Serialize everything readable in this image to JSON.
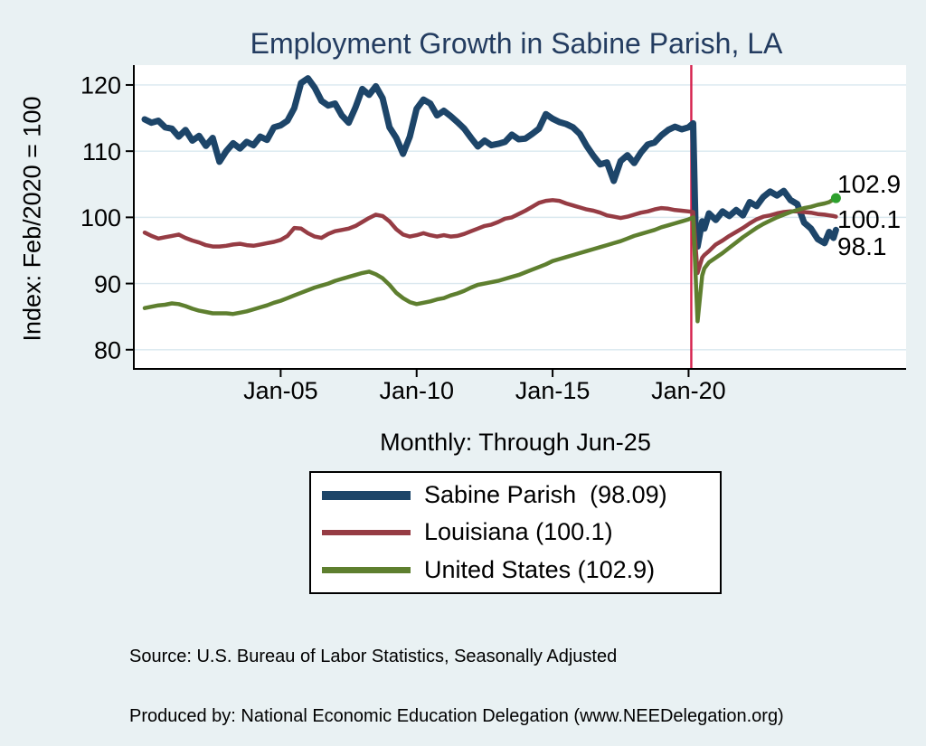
{
  "colors": {
    "background": "#e9f1f3",
    "plot_bg": "#ffffff",
    "grid": "#dae8ef",
    "axis": "#000000",
    "text": "#000000",
    "title": "#233c60",
    "sabine": "#1d4569",
    "louisiana": "#963c44",
    "united_states": "#5e7f2f",
    "event_line": "#d5214c",
    "end_dot": "#2da02d"
  },
  "chart_data": {
    "type": "line",
    "title": "Employment Growth in Sabine Parish, LA",
    "subtitle": "Monthly: Through Jun-25",
    "ylabel": "Index: Feb/2020 = 100",
    "xlabel": "",
    "grid": "horizontal",
    "legend_position": "bottom",
    "ylim": [
      77.1,
      123.0
    ],
    "xlim": [
      1999.6,
      2028.0
    ],
    "yticks": [
      80,
      90,
      100,
      110,
      120
    ],
    "xticks": [
      {
        "x": 2005,
        "label": "Jan-05"
      },
      {
        "x": 2010,
        "label": "Jan-10"
      },
      {
        "x": 2015,
        "label": "Jan-15"
      },
      {
        "x": 2020,
        "label": "Jan-20"
      }
    ],
    "event_line_x": 2020.1,
    "x": [
      2000.0,
      2000.25,
      2000.5,
      2000.75,
      2001.0,
      2001.25,
      2001.5,
      2001.75,
      2002.0,
      2002.25,
      2002.5,
      2002.75,
      2003.0,
      2003.25,
      2003.5,
      2003.75,
      2004.0,
      2004.25,
      2004.5,
      2004.75,
      2005.0,
      2005.25,
      2005.5,
      2005.75,
      2006.0,
      2006.25,
      2006.5,
      2006.75,
      2007.0,
      2007.25,
      2007.5,
      2007.75,
      2008.0,
      2008.25,
      2008.5,
      2008.75,
      2009.0,
      2009.25,
      2009.5,
      2009.75,
      2010.0,
      2010.25,
      2010.5,
      2010.75,
      2011.0,
      2011.25,
      2011.5,
      2011.75,
      2012.0,
      2012.25,
      2012.5,
      2012.75,
      2013.0,
      2013.25,
      2013.5,
      2013.75,
      2014.0,
      2014.25,
      2014.5,
      2014.75,
      2015.0,
      2015.25,
      2015.5,
      2015.75,
      2016.0,
      2016.25,
      2016.5,
      2016.75,
      2017.0,
      2017.25,
      2017.5,
      2017.75,
      2018.0,
      2018.25,
      2018.5,
      2018.75,
      2019.0,
      2019.25,
      2019.5,
      2019.75,
      2020.0,
      2020.17,
      2020.25,
      2020.33,
      2020.5,
      2020.58,
      2020.75,
      2021.0,
      2021.25,
      2021.5,
      2021.75,
      2022.0,
      2022.25,
      2022.5,
      2022.75,
      2023.0,
      2023.25,
      2023.5,
      2023.75,
      2024.0,
      2024.25,
      2024.5,
      2024.75,
      2025.0,
      2025.17,
      2025.33,
      2025.42
    ],
    "series": [
      {
        "name": "Sabine Parish",
        "legend_label": "Sabine Parish  (98.09)",
        "end_label": "98.1",
        "color_key": "sabine",
        "line_width": 7,
        "end_marker": false,
        "values": [
          114.8,
          114.3,
          114.6,
          113.6,
          113.4,
          112.2,
          113.2,
          111.6,
          112.3,
          110.8,
          112.0,
          108.4,
          110.0,
          111.2,
          110.4,
          111.4,
          110.9,
          112.2,
          111.7,
          113.6,
          113.9,
          114.6,
          116.5,
          120.3,
          121.0,
          119.6,
          117.6,
          116.9,
          117.2,
          115.4,
          114.3,
          116.6,
          119.4,
          118.5,
          119.8,
          118.0,
          113.6,
          112.0,
          109.6,
          112.2,
          116.4,
          117.8,
          117.2,
          115.4,
          116.1,
          115.3,
          114.4,
          113.4,
          112.0,
          110.7,
          111.6,
          110.9,
          111.1,
          111.4,
          112.5,
          111.8,
          111.9,
          112.6,
          113.4,
          115.6,
          114.9,
          114.4,
          114.1,
          113.6,
          112.6,
          110.8,
          109.3,
          108.0,
          108.3,
          105.5,
          108.5,
          109.4,
          108.2,
          109.8,
          111.0,
          111.3,
          112.4,
          113.2,
          113.7,
          113.3,
          113.6,
          114.2,
          99.2,
          95.6,
          99.4,
          98.3,
          100.6,
          99.6,
          100.9,
          100.2,
          101.1,
          100.3,
          102.3,
          101.7,
          103.1,
          103.9,
          103.3,
          104.0,
          102.6,
          102.0,
          99.2,
          98.3,
          96.7,
          96.1,
          97.8,
          96.9,
          98.1
        ]
      },
      {
        "name": "Louisiana",
        "legend_label": "Louisiana (100.1)",
        "end_label": "100.1",
        "color_key": "louisiana",
        "line_width": 4.5,
        "end_marker": false,
        "values": [
          97.7,
          97.2,
          96.8,
          97.0,
          97.2,
          97.4,
          96.9,
          96.5,
          96.2,
          95.8,
          95.6,
          95.6,
          95.7,
          95.9,
          96.0,
          95.8,
          95.7,
          95.9,
          96.1,
          96.3,
          96.6,
          97.2,
          98.4,
          98.3,
          97.6,
          97.1,
          96.9,
          97.5,
          97.9,
          98.1,
          98.3,
          98.7,
          99.3,
          99.9,
          100.4,
          100.2,
          99.4,
          98.2,
          97.4,
          97.1,
          97.3,
          97.6,
          97.3,
          97.1,
          97.3,
          97.1,
          97.2,
          97.5,
          97.9,
          98.3,
          98.7,
          98.9,
          99.3,
          99.8,
          100.0,
          100.5,
          101.0,
          101.6,
          102.2,
          102.5,
          102.6,
          102.5,
          102.1,
          101.8,
          101.5,
          101.2,
          101.0,
          100.7,
          100.3,
          100.1,
          99.9,
          100.1,
          100.4,
          100.7,
          100.9,
          101.2,
          101.4,
          101.3,
          101.1,
          101.0,
          100.9,
          100.8,
          96.0,
          91.6,
          93.9,
          94.3,
          94.9,
          95.9,
          96.5,
          97.2,
          97.8,
          98.4,
          99.1,
          99.7,
          100.1,
          100.3,
          100.6,
          100.8,
          100.9,
          100.9,
          100.8,
          100.7,
          100.5,
          100.4,
          100.3,
          100.2,
          100.1
        ]
      },
      {
        "name": "United States",
        "legend_label": "United States (102.9)",
        "end_label": "102.9",
        "color_key": "united_states",
        "line_width": 4.5,
        "end_marker": true,
        "values": [
          86.3,
          86.5,
          86.7,
          86.8,
          87.0,
          86.9,
          86.6,
          86.2,
          85.9,
          85.7,
          85.5,
          85.5,
          85.5,
          85.4,
          85.6,
          85.8,
          86.1,
          86.4,
          86.7,
          87.1,
          87.4,
          87.8,
          88.2,
          88.6,
          89.0,
          89.4,
          89.7,
          90.0,
          90.4,
          90.7,
          91.0,
          91.3,
          91.6,
          91.8,
          91.4,
          90.8,
          89.8,
          88.6,
          87.8,
          87.2,
          86.9,
          87.1,
          87.3,
          87.6,
          87.8,
          88.2,
          88.5,
          88.9,
          89.4,
          89.8,
          90.0,
          90.2,
          90.4,
          90.7,
          91.0,
          91.3,
          91.7,
          92.1,
          92.5,
          92.9,
          93.4,
          93.7,
          94.0,
          94.3,
          94.6,
          94.9,
          95.2,
          95.5,
          95.8,
          96.1,
          96.4,
          96.8,
          97.2,
          97.5,
          97.8,
          98.1,
          98.5,
          98.8,
          99.1,
          99.4,
          99.7,
          100.0,
          92.0,
          84.3,
          91.2,
          92.3,
          93.2,
          93.9,
          94.6,
          95.4,
          96.2,
          97.0,
          97.7,
          98.4,
          99.0,
          99.5,
          100.0,
          100.4,
          100.8,
          101.1,
          101.4,
          101.6,
          101.9,
          102.1,
          102.3,
          102.7,
          102.9
        ]
      }
    ]
  },
  "footer": {
    "source": "Source: U.S. Bureau of Labor Statistics, Seasonally Adjusted",
    "produced_by": "Produced by: National Economic Education Delegation (www.NEEDelegation.org)"
  }
}
